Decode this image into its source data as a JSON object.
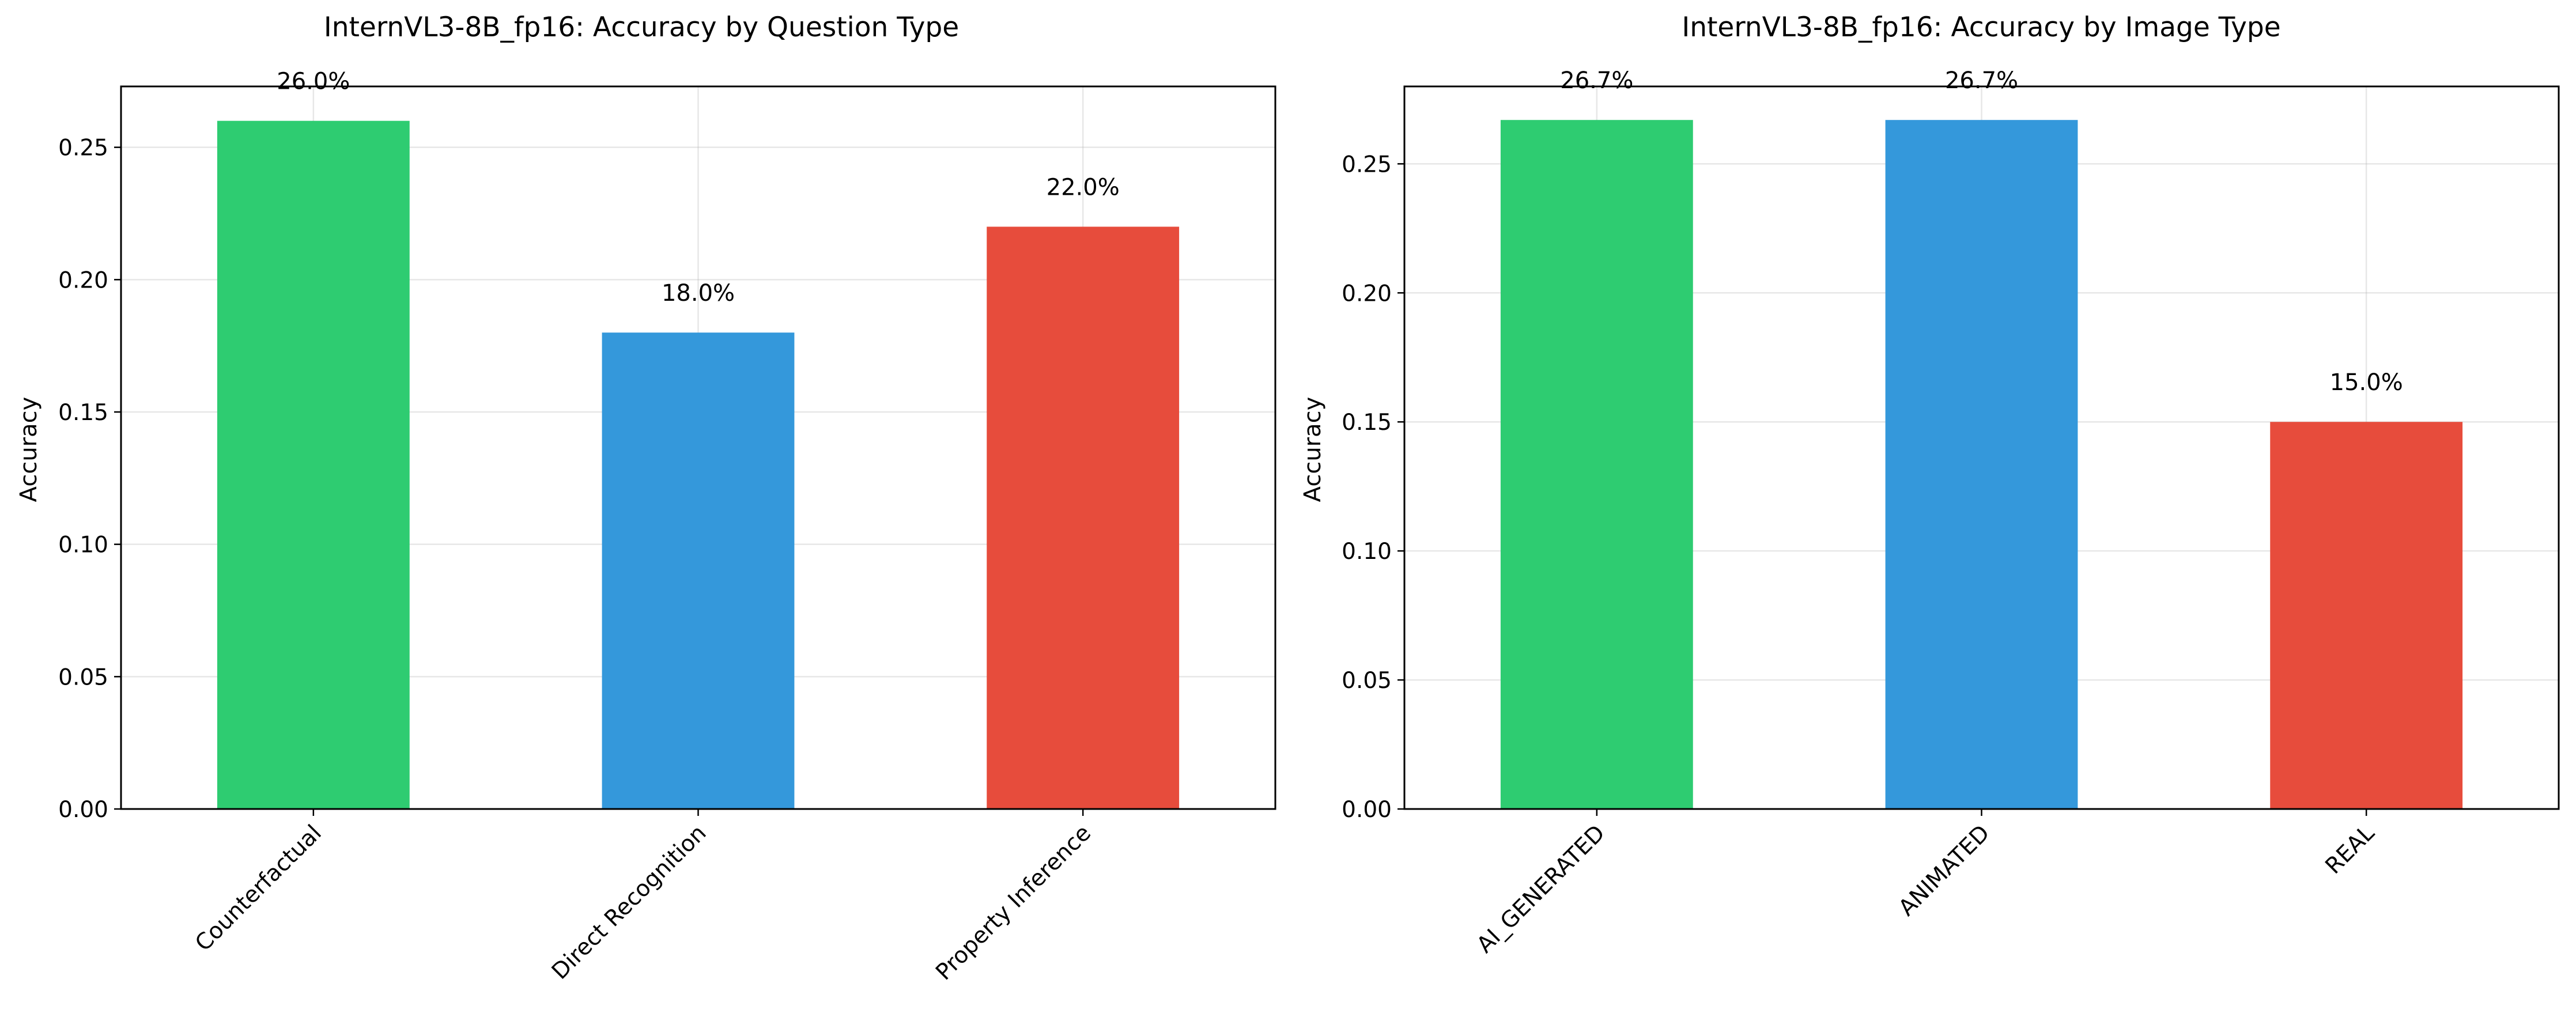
{
  "chart_data": [
    {
      "type": "bar",
      "title": "InternVL3-8B_fp16: Accuracy by Question Type",
      "xlabel": "",
      "ylabel": "Accuracy",
      "categories": [
        "Counterfactual",
        "Direct Recognition",
        "Property Inference"
      ],
      "values": [
        0.26,
        0.18,
        0.22
      ],
      "value_labels": [
        "26.0%",
        "18.0%",
        "22.0%"
      ],
      "colors": [
        "#2ecc71",
        "#3498db",
        "#e74c3c"
      ],
      "ylim": [
        0,
        0.273
      ],
      "yticks": [
        0.0,
        0.05,
        0.1,
        0.15,
        0.2,
        0.25
      ],
      "ytick_labels": [
        "0.00",
        "0.05",
        "0.10",
        "0.15",
        "0.20",
        "0.25"
      ],
      "grid": true,
      "xtick_rotation": 45
    },
    {
      "type": "bar",
      "title": "InternVL3-8B_fp16: Accuracy by Image Type",
      "xlabel": "",
      "ylabel": "Accuracy",
      "categories": [
        "AI_GENERATED",
        "ANIMATED",
        "REAL"
      ],
      "values": [
        0.267,
        0.267,
        0.15
      ],
      "value_labels": [
        "26.7%",
        "26.7%",
        "15.0%"
      ],
      "colors": [
        "#2ecc71",
        "#3498db",
        "#e74c3c"
      ],
      "ylim": [
        0,
        0.28
      ],
      "yticks": [
        0.0,
        0.05,
        0.1,
        0.15,
        0.2,
        0.25
      ],
      "ytick_labels": [
        "0.00",
        "0.05",
        "0.10",
        "0.15",
        "0.20",
        "0.25"
      ],
      "grid": true,
      "xtick_rotation": 45
    }
  ]
}
